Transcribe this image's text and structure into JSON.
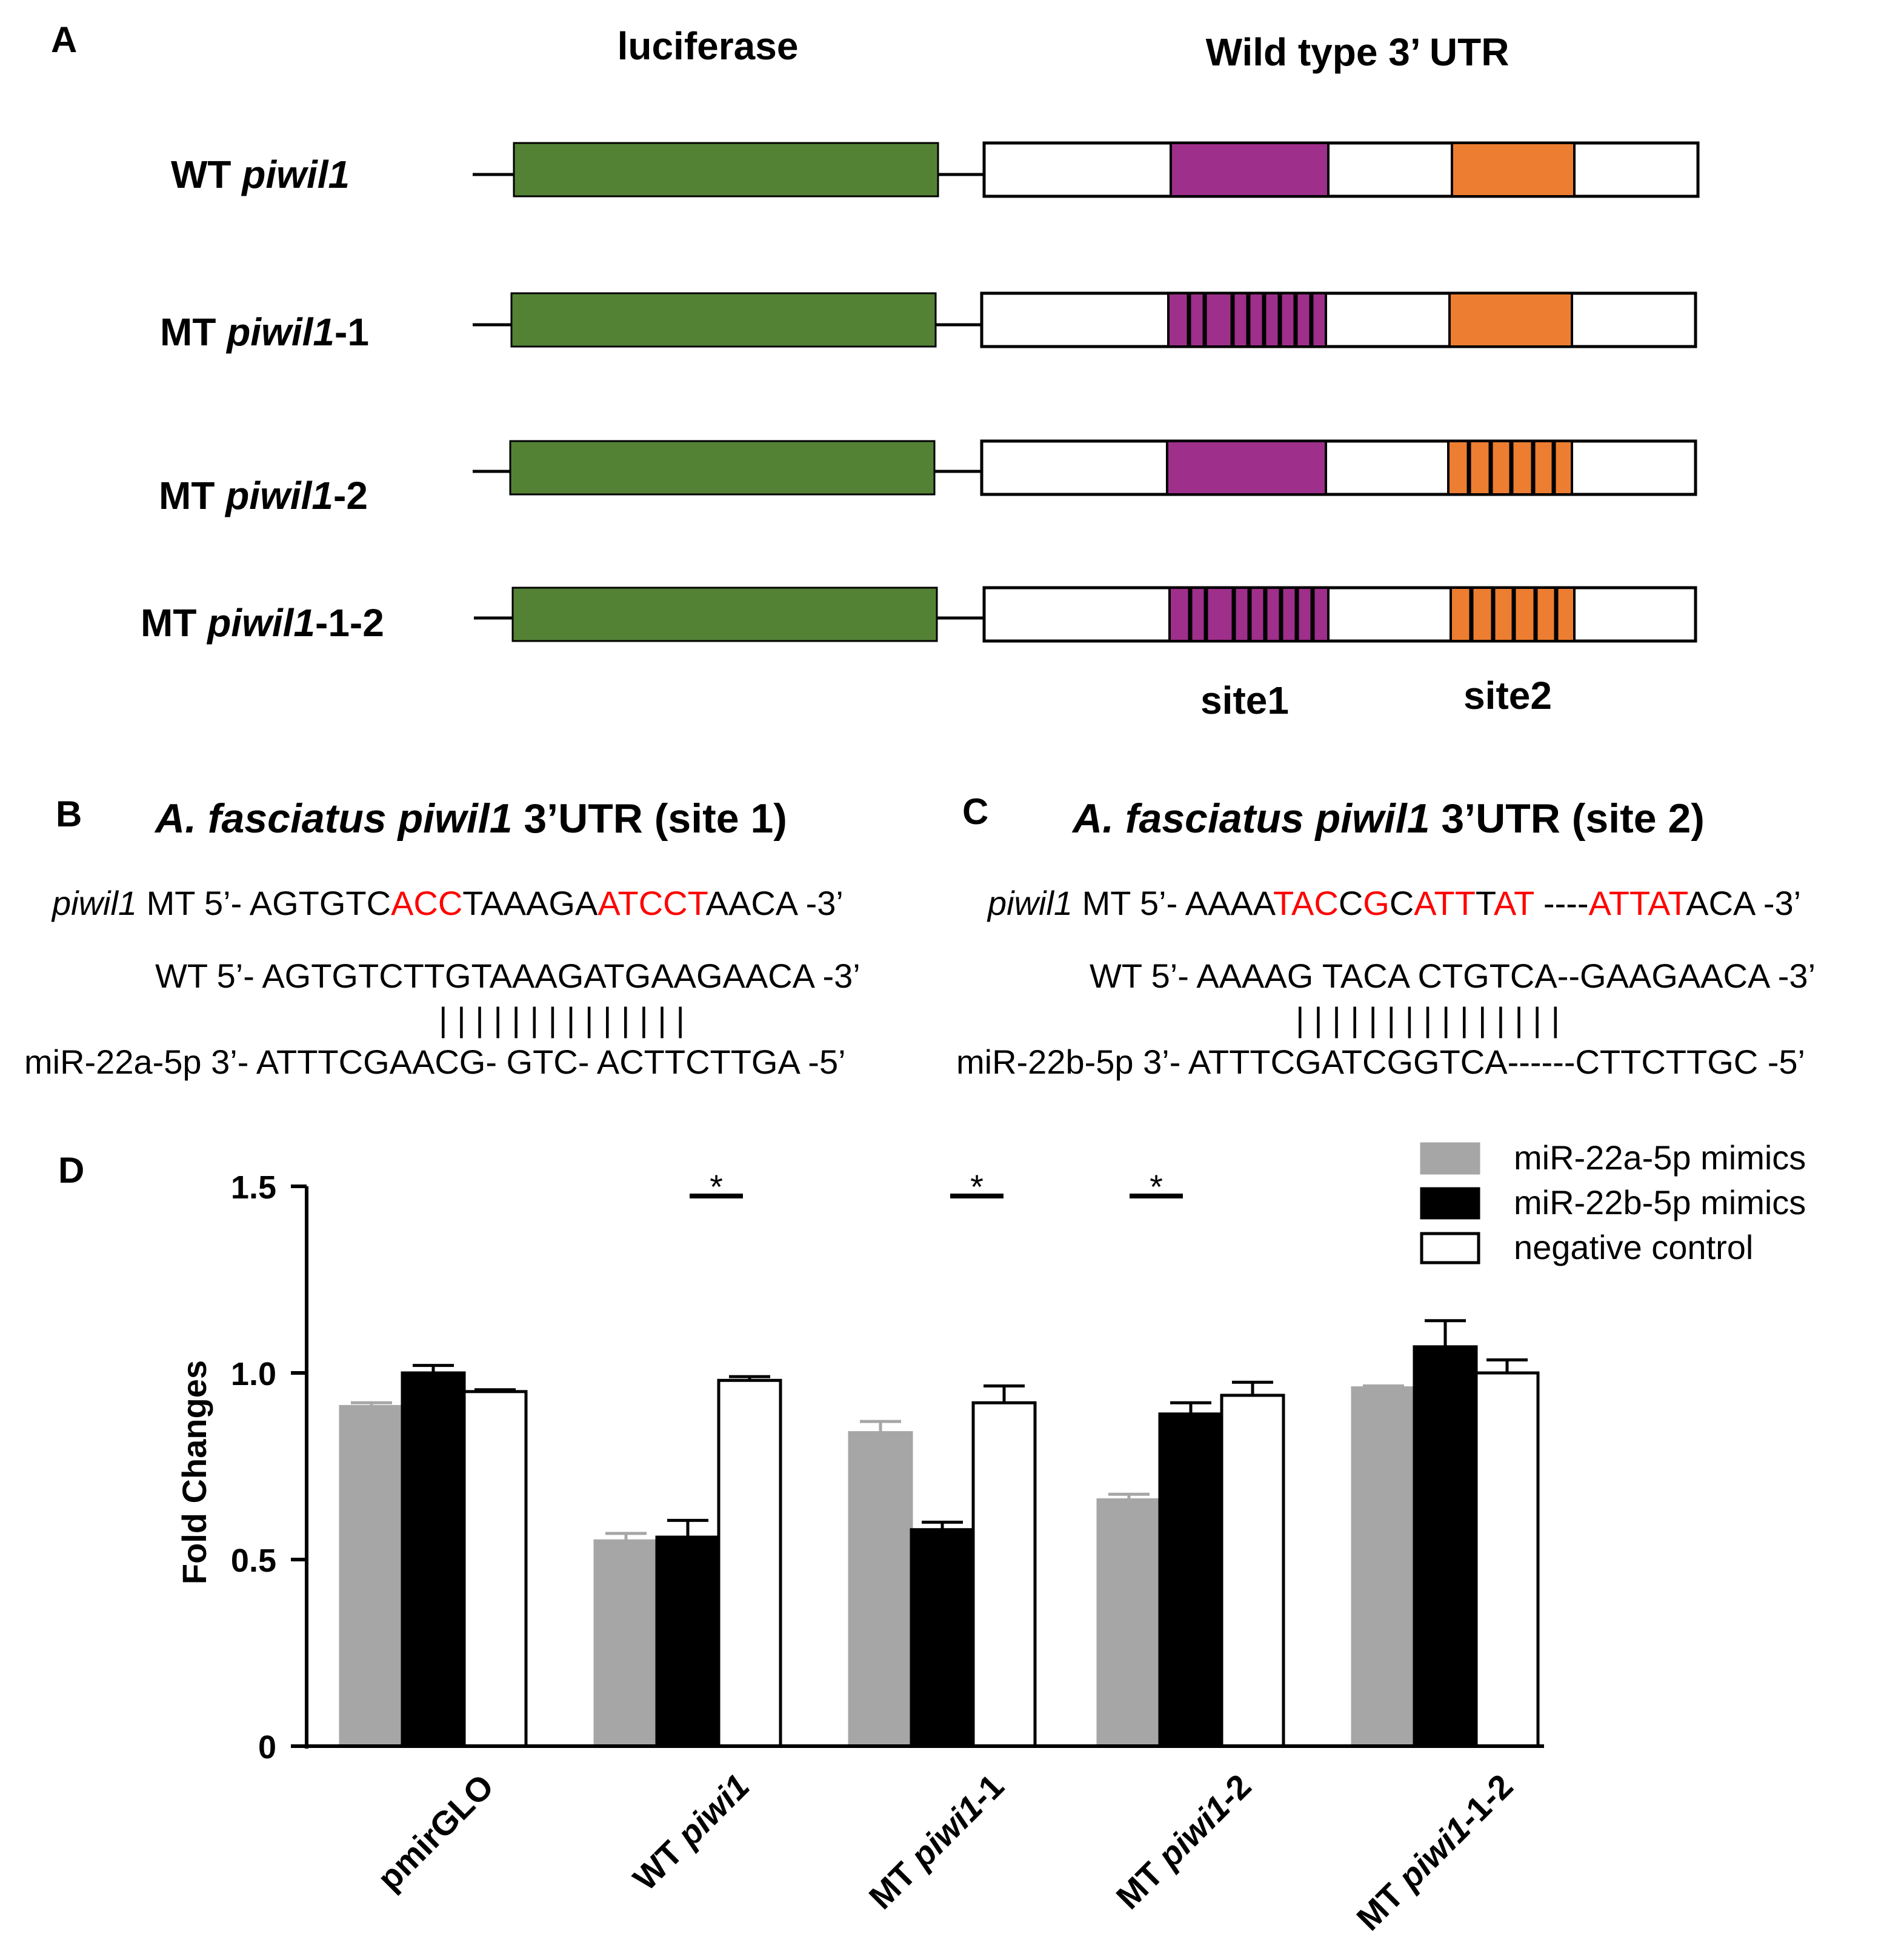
{
  "colors": {
    "luciferase": "#548235",
    "site1": "#9E2F8A",
    "site2": "#ED7D31",
    "mutant_red": "#FF0000",
    "gray_bar": "#A6A6A6",
    "black": "#000000"
  },
  "panelA": {
    "label": "A",
    "header_luciferase": "luciferase",
    "header_utr": "Wild type 3’ UTR",
    "constructs": [
      {
        "prefix": "WT ",
        "gene": "piwil1",
        "suffix": ""
      },
      {
        "prefix": "MT ",
        "gene": "piwil1",
        "suffix": "-1"
      },
      {
        "prefix": "MT ",
        "gene": "piwil1",
        "suffix": "-2"
      },
      {
        "prefix": "MT ",
        "gene": "piwil1",
        "suffix": "-1-2"
      }
    ],
    "site1_label": "site1",
    "site2_label": "site2"
  },
  "panelB": {
    "label": "B",
    "title_species": "A. fasciatus piwil1",
    "title_rest": " 3’UTR (site 1)",
    "mt_gene": "piwil1",
    "mt_seq": [
      {
        "t": " MT 5’- AGTGTC",
        "red": false
      },
      {
        "t": "ACC",
        "red": true
      },
      {
        "t": "TAAAGA",
        "red": false
      },
      {
        "t": "ATCCT",
        "red": true
      },
      {
        "t": "AACA -3’",
        "red": false
      }
    ],
    "wt_seq": "WT 5’- AGTGTCTTGTAAAGATGAAGAACA -3’",
    "pairing": "| | | |       | |    | | | | | | | |",
    "mir_seq": "miR-22a-5p 3’- ATTTCGAACG- GTC- ACTTCTTGA -5’"
  },
  "panelC": {
    "label": "C",
    "title_species": "A. fasciatus piwil1",
    "title_rest": " 3’UTR (site 2)",
    "mt_gene": "piwil1",
    "mt_seq": [
      {
        "t": " MT 5’- AAAA",
        "red": false
      },
      {
        "t": "TAC",
        "red": true
      },
      {
        "t": "C",
        "red": false
      },
      {
        "t": "G",
        "red": true
      },
      {
        "t": "C",
        "red": false
      },
      {
        "t": "ATT",
        "red": true
      },
      {
        "t": "T",
        "red": false
      },
      {
        "t": "AT",
        "red": true
      },
      {
        "t": " ----",
        "red": false
      },
      {
        "t": "ATTAT",
        "red": true
      },
      {
        "t": "ACA -3’",
        "red": false
      }
    ],
    "wt_seq": "WT 5’- AAAAG TACA CTGTCA--GAAGAACA -3’",
    "pairing": "| | | | |       |    | |        | | | | | | |",
    "mir_seq": "miR-22b-5p 3’- ATTTCGATCGGTCA------CTTCTTGC -5’"
  },
  "panelD": {
    "label": "D",
    "significance_mark": "*"
  },
  "chart_data": {
    "type": "bar",
    "ylabel": "Fold Changes",
    "xlabel": "",
    "ylim": [
      0,
      1.5
    ],
    "yticks": [
      {
        "v": 0,
        "label": "0"
      },
      {
        "v": 0.5,
        "label": "0.5"
      },
      {
        "v": 1.0,
        "label": "1.0"
      },
      {
        "v": 1.5,
        "label": "1.5"
      }
    ],
    "categories": [
      {
        "prefix": "",
        "gene": "",
        "suffix": "pmirGLO"
      },
      {
        "prefix": "WT ",
        "gene": "piwi1",
        "suffix": ""
      },
      {
        "prefix": "MT ",
        "gene": "piwi1",
        "suffix": "-1"
      },
      {
        "prefix": "MT ",
        "gene": "piwi1",
        "suffix": "-2"
      },
      {
        "prefix": "MT ",
        "gene": "piwi1",
        "suffix": "-1-2"
      }
    ],
    "series": [
      {
        "name": "miR-22a-5p mimics",
        "color": "#A6A6A6",
        "values": [
          0.91,
          0.55,
          0.84,
          0.66,
          0.96
        ],
        "errors": [
          0.01,
          0.02,
          0.03,
          0.015,
          0.005
        ]
      },
      {
        "name": "miR-22b-5p mimics",
        "color": "#000000",
        "values": [
          1.0,
          0.56,
          0.58,
          0.89,
          1.07
        ],
        "errors": [
          0.02,
          0.045,
          0.02,
          0.03,
          0.07
        ]
      },
      {
        "name": "negative control",
        "color": "#FFFFFF",
        "values": [
          0.95,
          0.98,
          0.92,
          0.94,
          1.0
        ],
        "errors": [
          0.005,
          0.01,
          0.045,
          0.035,
          0.035
        ]
      }
    ],
    "significance": [
      {
        "category": 1,
        "label": "*"
      },
      {
        "category": 2,
        "label": "*"
      },
      {
        "category": 3,
        "label": "*"
      }
    ],
    "legend_position": "top-right"
  }
}
